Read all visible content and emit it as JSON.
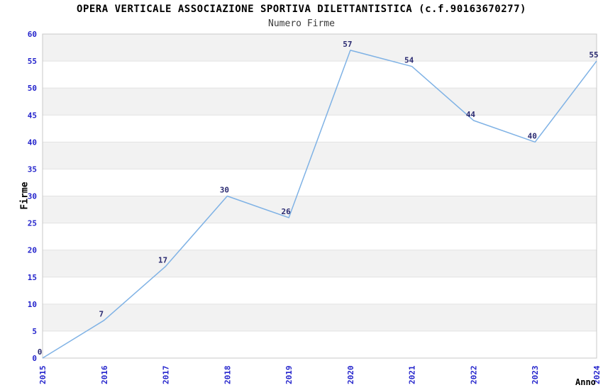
{
  "title": "OPERA VERTICALE ASSOCIAZIONE SPORTIVA DILETTANTISTICA (c.f.90163670277)",
  "subtitle": "Numero Firme",
  "chart_data": {
    "type": "line",
    "title": "OPERA VERTICALE ASSOCIAZIONE SPORTIVA DILETTANTISTICA (c.f.90163670277)",
    "subtitle": "Numero Firme",
    "x": [
      2015,
      2016,
      2017,
      2018,
      2019,
      2020,
      2021,
      2022,
      2023,
      2024
    ],
    "series": [
      {
        "name": "Numero Firme",
        "values": [
          0,
          7,
          17,
          30,
          26,
          57,
          54,
          44,
          40,
          55
        ]
      }
    ],
    "xlabel": "Anno",
    "ylabel": "Firme",
    "ylim": [
      0,
      60
    ],
    "ytick_step": 5,
    "legend": "none",
    "grid": "horizontal-lines-with-alternating-bands",
    "colors": {
      "line": "#7fb2e5",
      "tick_label": "#2424cc",
      "point_label": "#2b2b72",
      "band": "#f2f2f2",
      "grid_line": "#e2e2e2",
      "border": "#c8c8c8"
    }
  }
}
